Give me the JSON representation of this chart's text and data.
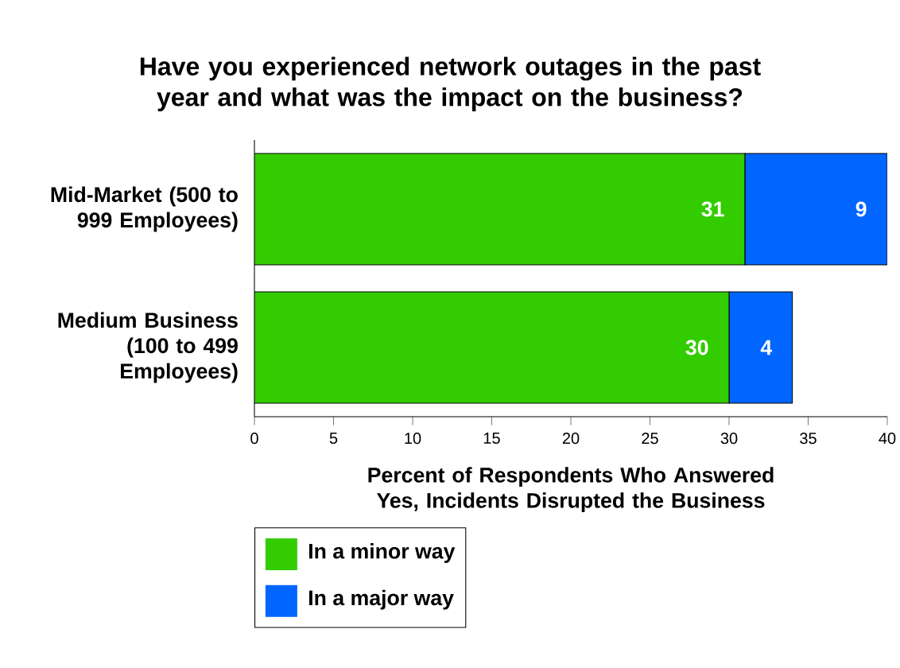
{
  "chart_data": {
    "type": "bar",
    "orientation": "horizontal",
    "stacked": true,
    "title": "Have you experienced network outages in the past year and what was the impact on the business?",
    "xlabel": "Percent of Respondents Who Answered Yes, Incidents Disrupted the Business",
    "categories": [
      "Mid-Market (500 to 999 Employees)",
      "Medium Business (100 to 499 Employees)"
    ],
    "series": [
      {
        "name": "In a minor way",
        "color": "#33cc00",
        "values": [
          31,
          30
        ]
      },
      {
        "name": "In a major way",
        "color": "#0066ff",
        "values": [
          9,
          4
        ]
      }
    ],
    "xlim": [
      0,
      40
    ],
    "xticks": [
      0,
      5,
      10,
      15,
      20,
      25,
      30,
      35,
      40
    ],
    "data_labels": true,
    "grid": false,
    "legend": "bottom left"
  }
}
